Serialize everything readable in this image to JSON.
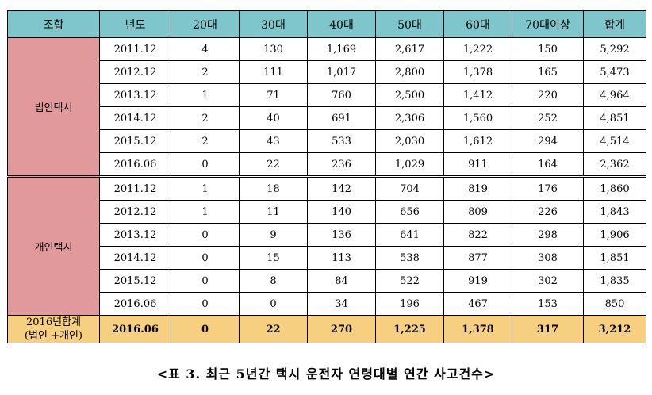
{
  "header": [
    "조합",
    "년도",
    "20대",
    "30대",
    "40대",
    "50대",
    "60대",
    "70대이상",
    "합계"
  ],
  "groups": [
    {
      "label": "법인택시",
      "rows": [
        [
          "2011.12",
          "4",
          "130",
          "1,169",
          "2,617",
          "1,222",
          "150",
          "5,292"
        ],
        [
          "2012.12",
          "2",
          "111",
          "1,017",
          "2,800",
          "1,378",
          "165",
          "5,473"
        ],
        [
          "2013.12",
          "1",
          "71",
          "760",
          "2,500",
          "1,412",
          "220",
          "4,964"
        ],
        [
          "2014.12",
          "2",
          "40",
          "691",
          "2,306",
          "1,560",
          "252",
          "4,851"
        ],
        [
          "2015.12",
          "2",
          "43",
          "533",
          "2,030",
          "1,612",
          "294",
          "4,514"
        ],
        [
          "2016.06",
          "0",
          "22",
          "236",
          "1,029",
          "911",
          "164",
          "2,362"
        ]
      ]
    },
    {
      "label": "개인택시",
      "rows": [
        [
          "2011.12",
          "1",
          "18",
          "142",
          "704",
          "819",
          "176",
          "1,860"
        ],
        [
          "2012.12",
          "1",
          "11",
          "140",
          "656",
          "809",
          "226",
          "1,843"
        ],
        [
          "2013.12",
          "0",
          "9",
          "136",
          "641",
          "822",
          "298",
          "1,906"
        ],
        [
          "2014.12",
          "0",
          "15",
          "113",
          "538",
          "877",
          "308",
          "1,851"
        ],
        [
          "2015.12",
          "0",
          "8",
          "84",
          "522",
          "919",
          "302",
          "1,835"
        ],
        [
          "2016.06",
          "0",
          "0",
          "34",
          "196",
          "467",
          "153",
          "850"
        ]
      ]
    }
  ],
  "total": {
    "label_line1": "2016년합계",
    "label_line2": "(법인 +개인)",
    "values": [
      "2016.06",
      "0",
      "22",
      "270",
      "1,225",
      "1,378",
      "317",
      "3,212"
    ]
  },
  "caption": "<표 3. 최근 5년간 택시 운전자 연령대별 연간 사고건수>",
  "colors": {
    "header": "#7fc6cc",
    "group": "#e2999b",
    "total": "#f6cf80"
  }
}
